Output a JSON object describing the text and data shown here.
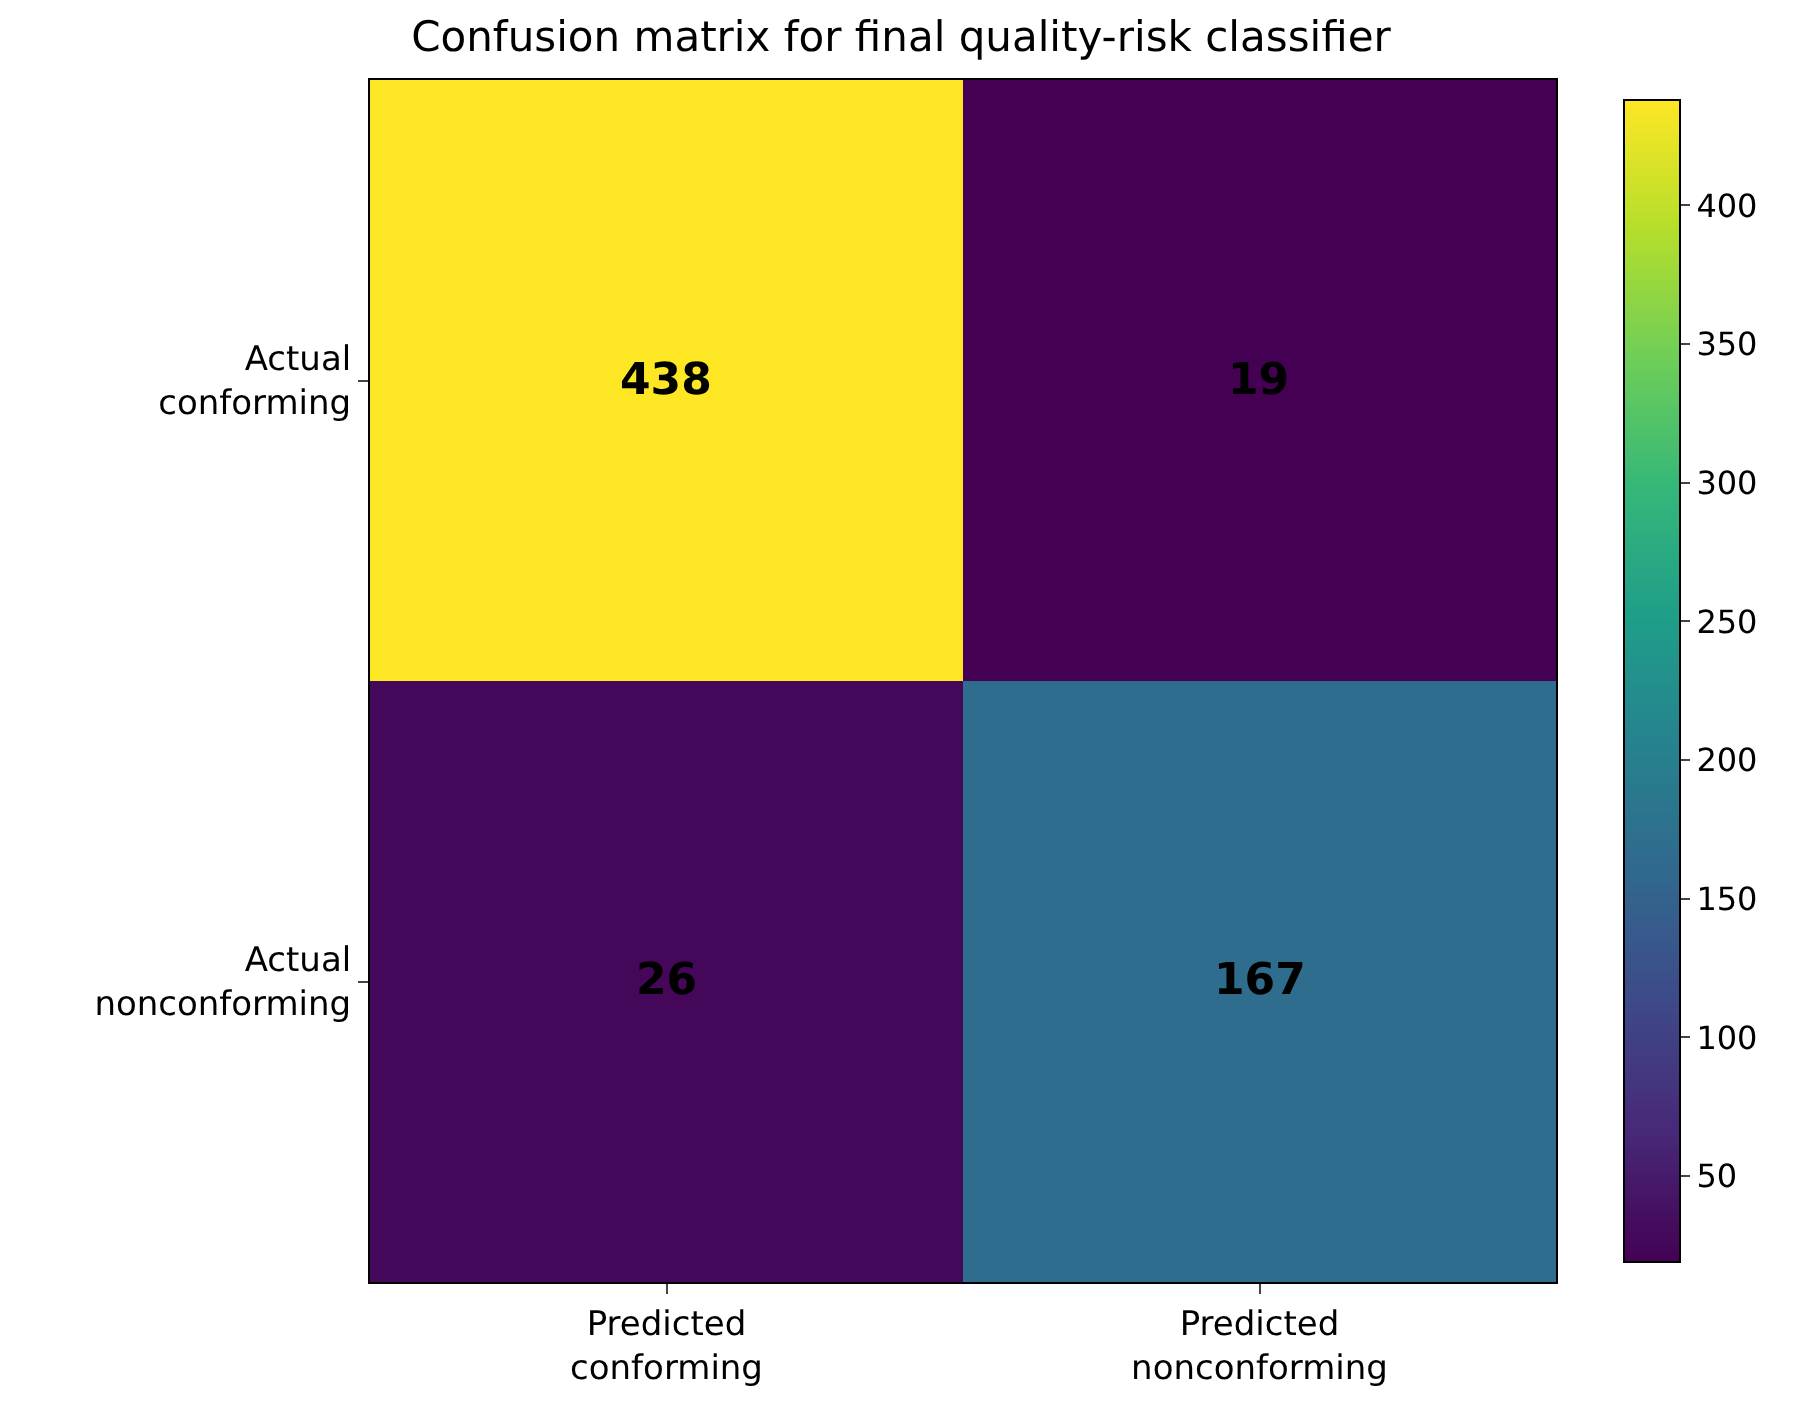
{
  "chart_data": {
    "type": "heatmap",
    "title": "Confusion matrix for final quality-risk classifier",
    "categories": [
      "Predicted conforming",
      "Predicted nonconforming"
    ],
    "y_categories": [
      "Actual conforming",
      "Actual nonconforming"
    ],
    "cells": [
      [
        438,
        19
      ],
      [
        26,
        167
      ]
    ],
    "clim": [
      19,
      438
    ],
    "cticks": [
      50,
      100,
      150,
      200,
      250,
      300,
      350,
      400
    ],
    "data_labels": true
  }
}
